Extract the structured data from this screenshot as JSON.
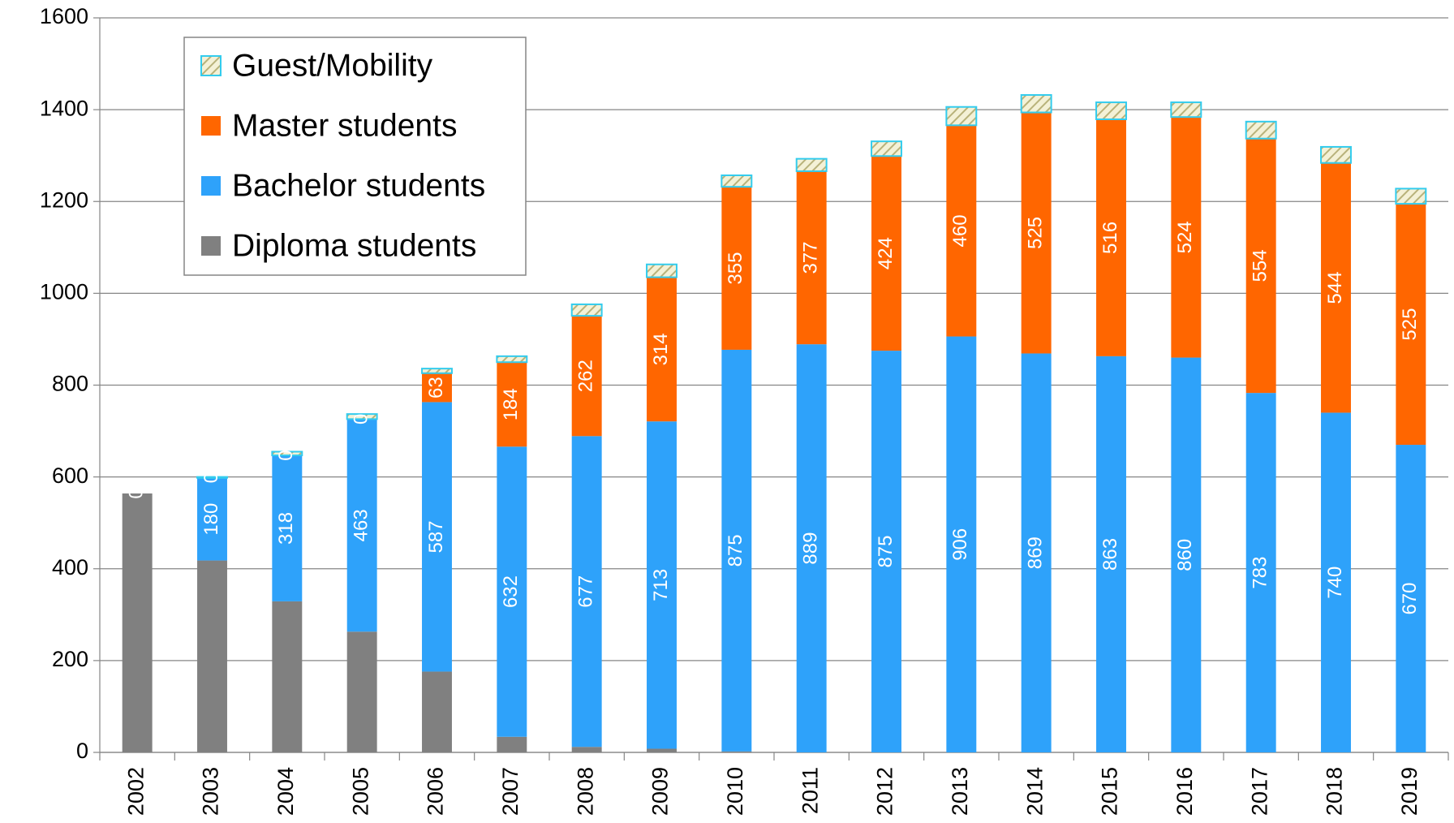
{
  "chart_data": {
    "type": "stacked_bar",
    "categories": [
      "2002",
      "2003",
      "2004",
      "2005",
      "2006",
      "2007",
      "2008",
      "2009",
      "2010",
      "2011",
      "2012",
      "2013",
      "2014",
      "2015",
      "2016",
      "2017",
      "2018",
      "2019"
    ],
    "series": [
      {
        "name": "Diploma students",
        "color": "#808080",
        "labels": false,
        "values": [
          564,
          418,
          329,
          263,
          176,
          34,
          12,
          8,
          2,
          0,
          0,
          0,
          0,
          0,
          0,
          0,
          0,
          0
        ]
      },
      {
        "name": "Bachelor students",
        "color": "#2ea2fa",
        "labels": true,
        "values": [
          0,
          180,
          318,
          463,
          587,
          632,
          677,
          713,
          875,
          889,
          875,
          906,
          869,
          863,
          860,
          783,
          740,
          670
        ]
      },
      {
        "name": "Master students",
        "color": "#ff6600",
        "labels": true,
        "values": [
          null,
          0,
          0,
          0,
          63,
          184,
          262,
          314,
          355,
          377,
          424,
          460,
          525,
          516,
          524,
          554,
          544,
          525
        ]
      },
      {
        "name": "Guest/Mobility",
        "color": "#e6e2b2",
        "edge": "#33ccee",
        "pattern": "hatch",
        "labels": false,
        "values": [
          0,
          2,
          8,
          11,
          10,
          13,
          25,
          28,
          25,
          27,
          32,
          40,
          38,
          37,
          32,
          37,
          35,
          33
        ]
      }
    ],
    "ylim": [
      0,
      1600
    ],
    "yticks": [
      0,
      200,
      400,
      600,
      800,
      1000,
      1200,
      1400,
      1600
    ],
    "grid": true,
    "legend": "upper left"
  }
}
